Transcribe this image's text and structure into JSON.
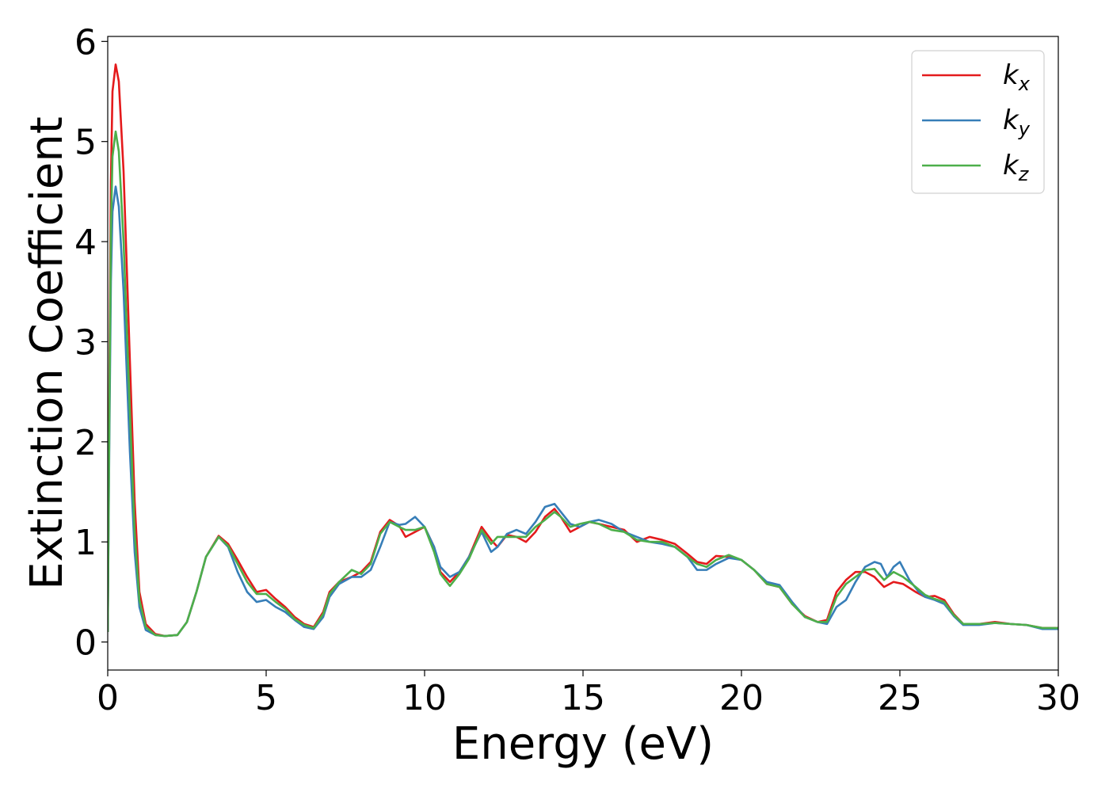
{
  "chart_data": {
    "type": "line",
    "xlabel": "Energy (eV)",
    "ylabel": "Extinction Coefficient",
    "xlim": [
      0,
      30
    ],
    "ylim": [
      -0.28,
      6.05
    ],
    "xticks": [
      0,
      5,
      10,
      15,
      20,
      25,
      30
    ],
    "yticks": [
      0,
      1,
      2,
      3,
      4,
      5,
      6
    ],
    "grid": false,
    "legend_position": "top-right",
    "series": [
      {
        "name_base": "k",
        "name_sub": "x",
        "color": "#e41a1c",
        "points": [
          [
            0,
            0.1
          ],
          [
            0.05,
            2.5
          ],
          [
            0.1,
            4.6
          ],
          [
            0.15,
            5.5
          ],
          [
            0.25,
            5.77
          ],
          [
            0.35,
            5.6
          ],
          [
            0.5,
            4.7
          ],
          [
            0.7,
            2.8
          ],
          [
            0.85,
            1.4
          ],
          [
            1.0,
            0.5
          ],
          [
            1.2,
            0.18
          ],
          [
            1.5,
            0.08
          ],
          [
            1.8,
            0.06
          ],
          [
            2.2,
            0.07
          ],
          [
            2.5,
            0.2
          ],
          [
            2.8,
            0.5
          ],
          [
            3.1,
            0.85
          ],
          [
            3.5,
            1.06
          ],
          [
            3.8,
            0.98
          ],
          [
            4.1,
            0.82
          ],
          [
            4.4,
            0.65
          ],
          [
            4.7,
            0.5
          ],
          [
            5.0,
            0.52
          ],
          [
            5.3,
            0.43
          ],
          [
            5.6,
            0.35
          ],
          [
            5.9,
            0.25
          ],
          [
            6.2,
            0.18
          ],
          [
            6.5,
            0.15
          ],
          [
            6.8,
            0.3
          ],
          [
            7.0,
            0.5
          ],
          [
            7.3,
            0.6
          ],
          [
            7.7,
            0.65
          ],
          [
            8.0,
            0.7
          ],
          [
            8.3,
            0.8
          ],
          [
            8.6,
            1.1
          ],
          [
            8.9,
            1.22
          ],
          [
            9.2,
            1.16
          ],
          [
            9.4,
            1.05
          ],
          [
            9.7,
            1.1
          ],
          [
            10.0,
            1.15
          ],
          [
            10.3,
            0.95
          ],
          [
            10.5,
            0.7
          ],
          [
            10.8,
            0.6
          ],
          [
            11.1,
            0.7
          ],
          [
            11.4,
            0.85
          ],
          [
            11.8,
            1.15
          ],
          [
            12.1,
            1.02
          ],
          [
            12.3,
            0.95
          ],
          [
            12.6,
            1.07
          ],
          [
            12.9,
            1.05
          ],
          [
            13.2,
            1.0
          ],
          [
            13.5,
            1.1
          ],
          [
            13.8,
            1.25
          ],
          [
            14.1,
            1.33
          ],
          [
            14.3,
            1.25
          ],
          [
            14.6,
            1.1
          ],
          [
            14.9,
            1.15
          ],
          [
            15.2,
            1.2
          ],
          [
            15.5,
            1.18
          ],
          [
            15.9,
            1.15
          ],
          [
            16.3,
            1.12
          ],
          [
            16.7,
            1.0
          ],
          [
            17.1,
            1.05
          ],
          [
            17.5,
            1.02
          ],
          [
            17.9,
            0.98
          ],
          [
            18.3,
            0.88
          ],
          [
            18.6,
            0.8
          ],
          [
            18.9,
            0.78
          ],
          [
            19.2,
            0.86
          ],
          [
            19.6,
            0.85
          ],
          [
            20.0,
            0.82
          ],
          [
            20.4,
            0.72
          ],
          [
            20.8,
            0.58
          ],
          [
            21.2,
            0.55
          ],
          [
            21.6,
            0.38
          ],
          [
            22.0,
            0.26
          ],
          [
            22.4,
            0.2
          ],
          [
            22.7,
            0.22
          ],
          [
            23.0,
            0.5
          ],
          [
            23.3,
            0.62
          ],
          [
            23.6,
            0.7
          ],
          [
            23.9,
            0.7
          ],
          [
            24.2,
            0.65
          ],
          [
            24.5,
            0.55
          ],
          [
            24.8,
            0.6
          ],
          [
            25.1,
            0.58
          ],
          [
            25.5,
            0.5
          ],
          [
            25.8,
            0.45
          ],
          [
            26.1,
            0.46
          ],
          [
            26.4,
            0.42
          ],
          [
            26.7,
            0.28
          ],
          [
            27.0,
            0.18
          ],
          [
            27.5,
            0.18
          ],
          [
            28.0,
            0.2
          ],
          [
            28.5,
            0.18
          ],
          [
            29.0,
            0.17
          ],
          [
            29.5,
            0.14
          ],
          [
            30.0,
            0.14
          ]
        ]
      },
      {
        "name_base": "k",
        "name_sub": "y",
        "color": "#377eb8",
        "points": [
          [
            0,
            0.1
          ],
          [
            0.05,
            2.0
          ],
          [
            0.1,
            3.6
          ],
          [
            0.15,
            4.3
          ],
          [
            0.25,
            4.55
          ],
          [
            0.35,
            4.35
          ],
          [
            0.5,
            3.5
          ],
          [
            0.7,
            1.9
          ],
          [
            0.85,
            0.9
          ],
          [
            1.0,
            0.35
          ],
          [
            1.2,
            0.12
          ],
          [
            1.5,
            0.07
          ],
          [
            1.8,
            0.06
          ],
          [
            2.2,
            0.07
          ],
          [
            2.5,
            0.2
          ],
          [
            2.8,
            0.5
          ],
          [
            3.1,
            0.85
          ],
          [
            3.5,
            1.05
          ],
          [
            3.8,
            0.95
          ],
          [
            4.1,
            0.7
          ],
          [
            4.4,
            0.5
          ],
          [
            4.7,
            0.4
          ],
          [
            5.0,
            0.42
          ],
          [
            5.3,
            0.35
          ],
          [
            5.6,
            0.3
          ],
          [
            5.9,
            0.22
          ],
          [
            6.2,
            0.15
          ],
          [
            6.5,
            0.13
          ],
          [
            6.8,
            0.25
          ],
          [
            7.0,
            0.45
          ],
          [
            7.3,
            0.58
          ],
          [
            7.7,
            0.65
          ],
          [
            8.0,
            0.65
          ],
          [
            8.3,
            0.72
          ],
          [
            8.6,
            0.95
          ],
          [
            8.9,
            1.2
          ],
          [
            9.2,
            1.17
          ],
          [
            9.4,
            1.18
          ],
          [
            9.7,
            1.25
          ],
          [
            10.0,
            1.15
          ],
          [
            10.3,
            0.95
          ],
          [
            10.5,
            0.75
          ],
          [
            10.8,
            0.65
          ],
          [
            11.1,
            0.7
          ],
          [
            11.4,
            0.85
          ],
          [
            11.8,
            1.1
          ],
          [
            12.1,
            0.9
          ],
          [
            12.3,
            0.95
          ],
          [
            12.6,
            1.08
          ],
          [
            12.9,
            1.12
          ],
          [
            13.2,
            1.08
          ],
          [
            13.5,
            1.2
          ],
          [
            13.8,
            1.35
          ],
          [
            14.1,
            1.38
          ],
          [
            14.3,
            1.3
          ],
          [
            14.6,
            1.18
          ],
          [
            14.9,
            1.15
          ],
          [
            15.2,
            1.2
          ],
          [
            15.5,
            1.22
          ],
          [
            15.9,
            1.18
          ],
          [
            16.3,
            1.1
          ],
          [
            16.7,
            1.05
          ],
          [
            17.1,
            1.0
          ],
          [
            17.5,
            0.98
          ],
          [
            17.9,
            0.95
          ],
          [
            18.3,
            0.85
          ],
          [
            18.6,
            0.72
          ],
          [
            18.9,
            0.72
          ],
          [
            19.2,
            0.78
          ],
          [
            19.6,
            0.84
          ],
          [
            20.0,
            0.82
          ],
          [
            20.4,
            0.72
          ],
          [
            20.8,
            0.6
          ],
          [
            21.2,
            0.57
          ],
          [
            21.6,
            0.4
          ],
          [
            22.0,
            0.25
          ],
          [
            22.4,
            0.2
          ],
          [
            22.7,
            0.18
          ],
          [
            23.0,
            0.35
          ],
          [
            23.3,
            0.42
          ],
          [
            23.6,
            0.6
          ],
          [
            23.9,
            0.75
          ],
          [
            24.2,
            0.8
          ],
          [
            24.4,
            0.78
          ],
          [
            24.6,
            0.65
          ],
          [
            24.8,
            0.75
          ],
          [
            25.0,
            0.8
          ],
          [
            25.3,
            0.62
          ],
          [
            25.6,
            0.5
          ],
          [
            25.8,
            0.45
          ],
          [
            26.1,
            0.42
          ],
          [
            26.4,
            0.38
          ],
          [
            26.7,
            0.26
          ],
          [
            27.0,
            0.17
          ],
          [
            27.5,
            0.17
          ],
          [
            28.0,
            0.19
          ],
          [
            28.5,
            0.18
          ],
          [
            29.0,
            0.17
          ],
          [
            29.5,
            0.13
          ],
          [
            30.0,
            0.13
          ]
        ]
      },
      {
        "name_base": "k",
        "name_sub": "z",
        "color": "#4daf4a",
        "points": [
          [
            0,
            0.1
          ],
          [
            0.05,
            2.2
          ],
          [
            0.1,
            4.1
          ],
          [
            0.15,
            4.85
          ],
          [
            0.25,
            5.1
          ],
          [
            0.35,
            4.9
          ],
          [
            0.5,
            4.0
          ],
          [
            0.7,
            2.3
          ],
          [
            0.85,
            1.1
          ],
          [
            1.0,
            0.42
          ],
          [
            1.2,
            0.15
          ],
          [
            1.5,
            0.07
          ],
          [
            1.8,
            0.06
          ],
          [
            2.2,
            0.07
          ],
          [
            2.5,
            0.2
          ],
          [
            2.8,
            0.5
          ],
          [
            3.1,
            0.85
          ],
          [
            3.5,
            1.05
          ],
          [
            3.8,
            0.96
          ],
          [
            4.1,
            0.78
          ],
          [
            4.4,
            0.6
          ],
          [
            4.7,
            0.48
          ],
          [
            5.0,
            0.48
          ],
          [
            5.3,
            0.4
          ],
          [
            5.6,
            0.33
          ],
          [
            5.9,
            0.23
          ],
          [
            6.2,
            0.17
          ],
          [
            6.5,
            0.14
          ],
          [
            6.8,
            0.28
          ],
          [
            7.0,
            0.48
          ],
          [
            7.3,
            0.6
          ],
          [
            7.7,
            0.72
          ],
          [
            8.0,
            0.68
          ],
          [
            8.3,
            0.78
          ],
          [
            8.6,
            1.08
          ],
          [
            8.9,
            1.2
          ],
          [
            9.2,
            1.15
          ],
          [
            9.4,
            1.12
          ],
          [
            9.7,
            1.12
          ],
          [
            10.0,
            1.15
          ],
          [
            10.3,
            0.9
          ],
          [
            10.5,
            0.68
          ],
          [
            10.8,
            0.56
          ],
          [
            11.1,
            0.68
          ],
          [
            11.4,
            0.83
          ],
          [
            11.8,
            1.12
          ],
          [
            12.1,
            0.98
          ],
          [
            12.3,
            1.05
          ],
          [
            12.6,
            1.05
          ],
          [
            12.9,
            1.05
          ],
          [
            13.2,
            1.05
          ],
          [
            13.5,
            1.15
          ],
          [
            13.8,
            1.22
          ],
          [
            14.1,
            1.3
          ],
          [
            14.3,
            1.25
          ],
          [
            14.6,
            1.15
          ],
          [
            14.9,
            1.18
          ],
          [
            15.2,
            1.2
          ],
          [
            15.5,
            1.18
          ],
          [
            15.9,
            1.12
          ],
          [
            16.3,
            1.1
          ],
          [
            16.7,
            1.02
          ],
          [
            17.1,
            1.0
          ],
          [
            17.5,
            1.0
          ],
          [
            17.9,
            0.95
          ],
          [
            18.3,
            0.85
          ],
          [
            18.6,
            0.78
          ],
          [
            18.9,
            0.75
          ],
          [
            19.2,
            0.82
          ],
          [
            19.6,
            0.87
          ],
          [
            20.0,
            0.82
          ],
          [
            20.4,
            0.72
          ],
          [
            20.8,
            0.58
          ],
          [
            21.2,
            0.55
          ],
          [
            21.6,
            0.38
          ],
          [
            22.0,
            0.25
          ],
          [
            22.4,
            0.2
          ],
          [
            22.7,
            0.2
          ],
          [
            23.0,
            0.45
          ],
          [
            23.3,
            0.58
          ],
          [
            23.6,
            0.65
          ],
          [
            23.9,
            0.72
          ],
          [
            24.2,
            0.73
          ],
          [
            24.5,
            0.62
          ],
          [
            24.8,
            0.7
          ],
          [
            25.1,
            0.65
          ],
          [
            25.5,
            0.55
          ],
          [
            25.8,
            0.47
          ],
          [
            26.1,
            0.43
          ],
          [
            26.4,
            0.4
          ],
          [
            26.7,
            0.27
          ],
          [
            27.0,
            0.18
          ],
          [
            27.5,
            0.18
          ],
          [
            28.0,
            0.19
          ],
          [
            28.5,
            0.18
          ],
          [
            29.0,
            0.17
          ],
          [
            29.5,
            0.14
          ],
          [
            30.0,
            0.14
          ]
        ]
      }
    ]
  }
}
